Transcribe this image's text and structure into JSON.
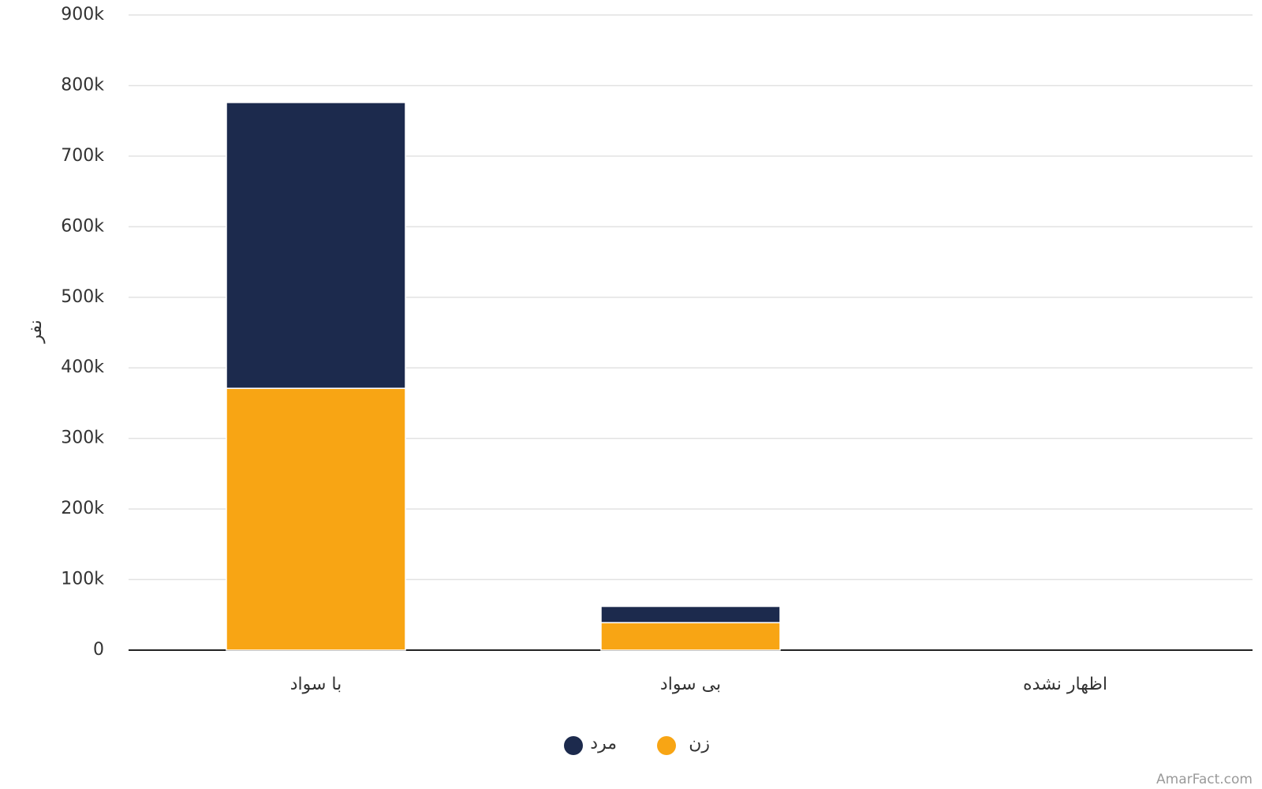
{
  "chart_data": {
    "type": "bar",
    "stacked": true,
    "y_label": "نفر",
    "categories": [
      "با سواد",
      "بی سواد",
      "اظهار نشده"
    ],
    "series": [
      {
        "name": "زن",
        "color": "#f8a514",
        "values": [
          371000,
          39000,
          0
        ]
      },
      {
        "name": "مرد",
        "color": "#1c2a4d",
        "values": [
          405000,
          23000,
          0
        ]
      }
    ],
    "ylim": [
      0,
      900000
    ],
    "yticks": [
      0,
      {
        "value": 100000,
        "label": "100k"
      },
      {
        "value": 200000,
        "label": "200k"
      },
      {
        "value": 300000,
        "label": "300k"
      },
      {
        "value": 400000,
        "label": "400k"
      },
      {
        "value": 500000,
        "label": "500k"
      },
      {
        "value": 600000,
        "label": "600k"
      },
      {
        "value": 700000,
        "label": "700k"
      },
      {
        "value": 800000,
        "label": "800k"
      },
      {
        "value": 900000,
        "label": "900k"
      }
    ],
    "grid": true,
    "legend": "bottom",
    "watermark": "AmarFact.com"
  }
}
